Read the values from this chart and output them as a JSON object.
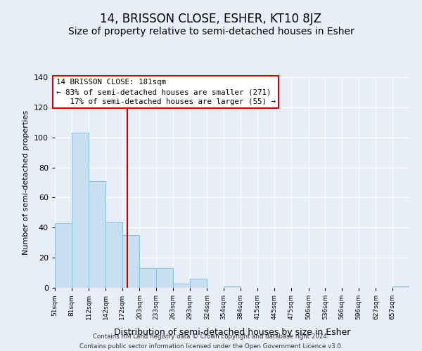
{
  "title": "14, BRISSON CLOSE, ESHER, KT10 8JZ",
  "subtitle": "Size of property relative to semi-detached houses in Esher",
  "xlabel": "Distribution of semi-detached houses by size in Esher",
  "ylabel": "Number of semi-detached properties",
  "bin_labels": [
    "51sqm",
    "81sqm",
    "112sqm",
    "142sqm",
    "172sqm",
    "203sqm",
    "233sqm",
    "263sqm",
    "293sqm",
    "324sqm",
    "354sqm",
    "384sqm",
    "415sqm",
    "445sqm",
    "475sqm",
    "506sqm",
    "536sqm",
    "566sqm",
    "596sqm",
    "627sqm",
    "657sqm"
  ],
  "bin_edges": [
    51,
    81,
    112,
    142,
    172,
    203,
    233,
    263,
    293,
    324,
    354,
    384,
    415,
    445,
    475,
    506,
    536,
    566,
    596,
    627,
    657
  ],
  "bar_heights": [
    43,
    103,
    71,
    44,
    35,
    13,
    13,
    3,
    6,
    0,
    1,
    0,
    0,
    0,
    0,
    0,
    0,
    0,
    0,
    0,
    1
  ],
  "bar_color": "#c8dff0",
  "bar_edgecolor": "#8bbdd9",
  "vline_x": 181,
  "vline_color": "#cc0000",
  "ylim": [
    0,
    140
  ],
  "yticks": [
    0,
    20,
    40,
    60,
    80,
    100,
    120,
    140
  ],
  "annotation_title": "14 BRISSON CLOSE: 181sqm",
  "annotation_line1": "← 83% of semi-detached houses are smaller (271)",
  "annotation_line2": "   17% of semi-detached houses are larger (55) →",
  "annotation_box_color": "#ffffff",
  "annotation_box_edgecolor": "#cc0000",
  "footer_line1": "Contains HM Land Registry data © Crown copyright and database right 2024.",
  "footer_line2": "Contains public sector information licensed under the Open Government Licence v3.0.",
  "title_fontsize": 12,
  "subtitle_fontsize": 10,
  "background_color": "#e8eef8"
}
